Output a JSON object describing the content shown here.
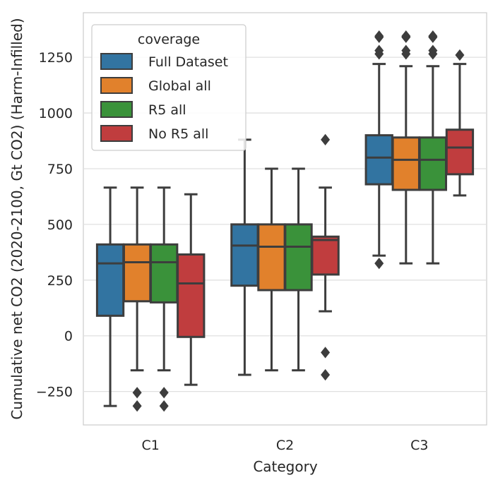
{
  "chart_data": {
    "type": "box",
    "xlabel": "Category",
    "ylabel": "Cumulative net CO2 (2020-2100, Gt CO2) (Harm-Infilled)",
    "categories": [
      "C1",
      "C2",
      "C3"
    ],
    "ylim": [
      -400,
      1450
    ],
    "yticks": [
      -250,
      0,
      250,
      500,
      750,
      1000,
      1250
    ],
    "grid": true,
    "legend": {
      "title": "coverage",
      "position": "top-left"
    },
    "series": [
      {
        "name": "Full Dataset",
        "color": "#3274a1",
        "boxes": [
          {
            "category": "C1",
            "whisker_low": -315,
            "q1": 90,
            "median": 325,
            "q3": 410,
            "whisker_high": 665,
            "outliers": []
          },
          {
            "category": "C2",
            "whisker_low": -175,
            "q1": 225,
            "median": 405,
            "q3": 500,
            "whisker_high": 880,
            "outliers": []
          },
          {
            "category": "C3",
            "whisker_low": 360,
            "q1": 680,
            "median": 800,
            "q3": 900,
            "whisker_high": 1220,
            "outliers": [
              325,
              1265,
              1280,
              1340,
              1345
            ]
          }
        ]
      },
      {
        "name": "Global all",
        "color": "#e1812c",
        "boxes": [
          {
            "category": "C1",
            "whisker_low": -155,
            "q1": 155,
            "median": 330,
            "q3": 410,
            "whisker_high": 665,
            "outliers": [
              -255,
              -315
            ]
          },
          {
            "category": "C2",
            "whisker_low": -155,
            "q1": 205,
            "median": 400,
            "q3": 500,
            "whisker_high": 750,
            "outliers": []
          },
          {
            "category": "C3",
            "whisker_low": 325,
            "q1": 655,
            "median": 790,
            "q3": 890,
            "whisker_high": 1210,
            "outliers": [
              1265,
              1280,
              1340,
              1345
            ]
          }
        ]
      },
      {
        "name": "R5 all",
        "color": "#3a923a",
        "boxes": [
          {
            "category": "C1",
            "whisker_low": -155,
            "q1": 150,
            "median": 330,
            "q3": 410,
            "whisker_high": 665,
            "outliers": [
              -255,
              -315
            ]
          },
          {
            "category": "C2",
            "whisker_low": -155,
            "q1": 205,
            "median": 400,
            "q3": 500,
            "whisker_high": 750,
            "outliers": []
          },
          {
            "category": "C3",
            "whisker_low": 325,
            "q1": 655,
            "median": 790,
            "q3": 890,
            "whisker_high": 1210,
            "outliers": [
              1265,
              1280,
              1340,
              1345
            ]
          }
        ]
      },
      {
        "name": "No R5 all",
        "color": "#c03d3e",
        "boxes": [
          {
            "category": "C1",
            "whisker_low": -220,
            "q1": -5,
            "median": 235,
            "q3": 365,
            "whisker_high": 635,
            "outliers": []
          },
          {
            "category": "C2",
            "whisker_low": 110,
            "q1": 275,
            "median": 430,
            "q3": 445,
            "whisker_high": 665,
            "outliers": [
              -75,
              -175,
              880
            ]
          },
          {
            "category": "C3",
            "whisker_low": 630,
            "q1": 725,
            "median": 845,
            "q3": 925,
            "whisker_high": 1220,
            "outliers": [
              1260
            ]
          }
        ]
      }
    ]
  }
}
